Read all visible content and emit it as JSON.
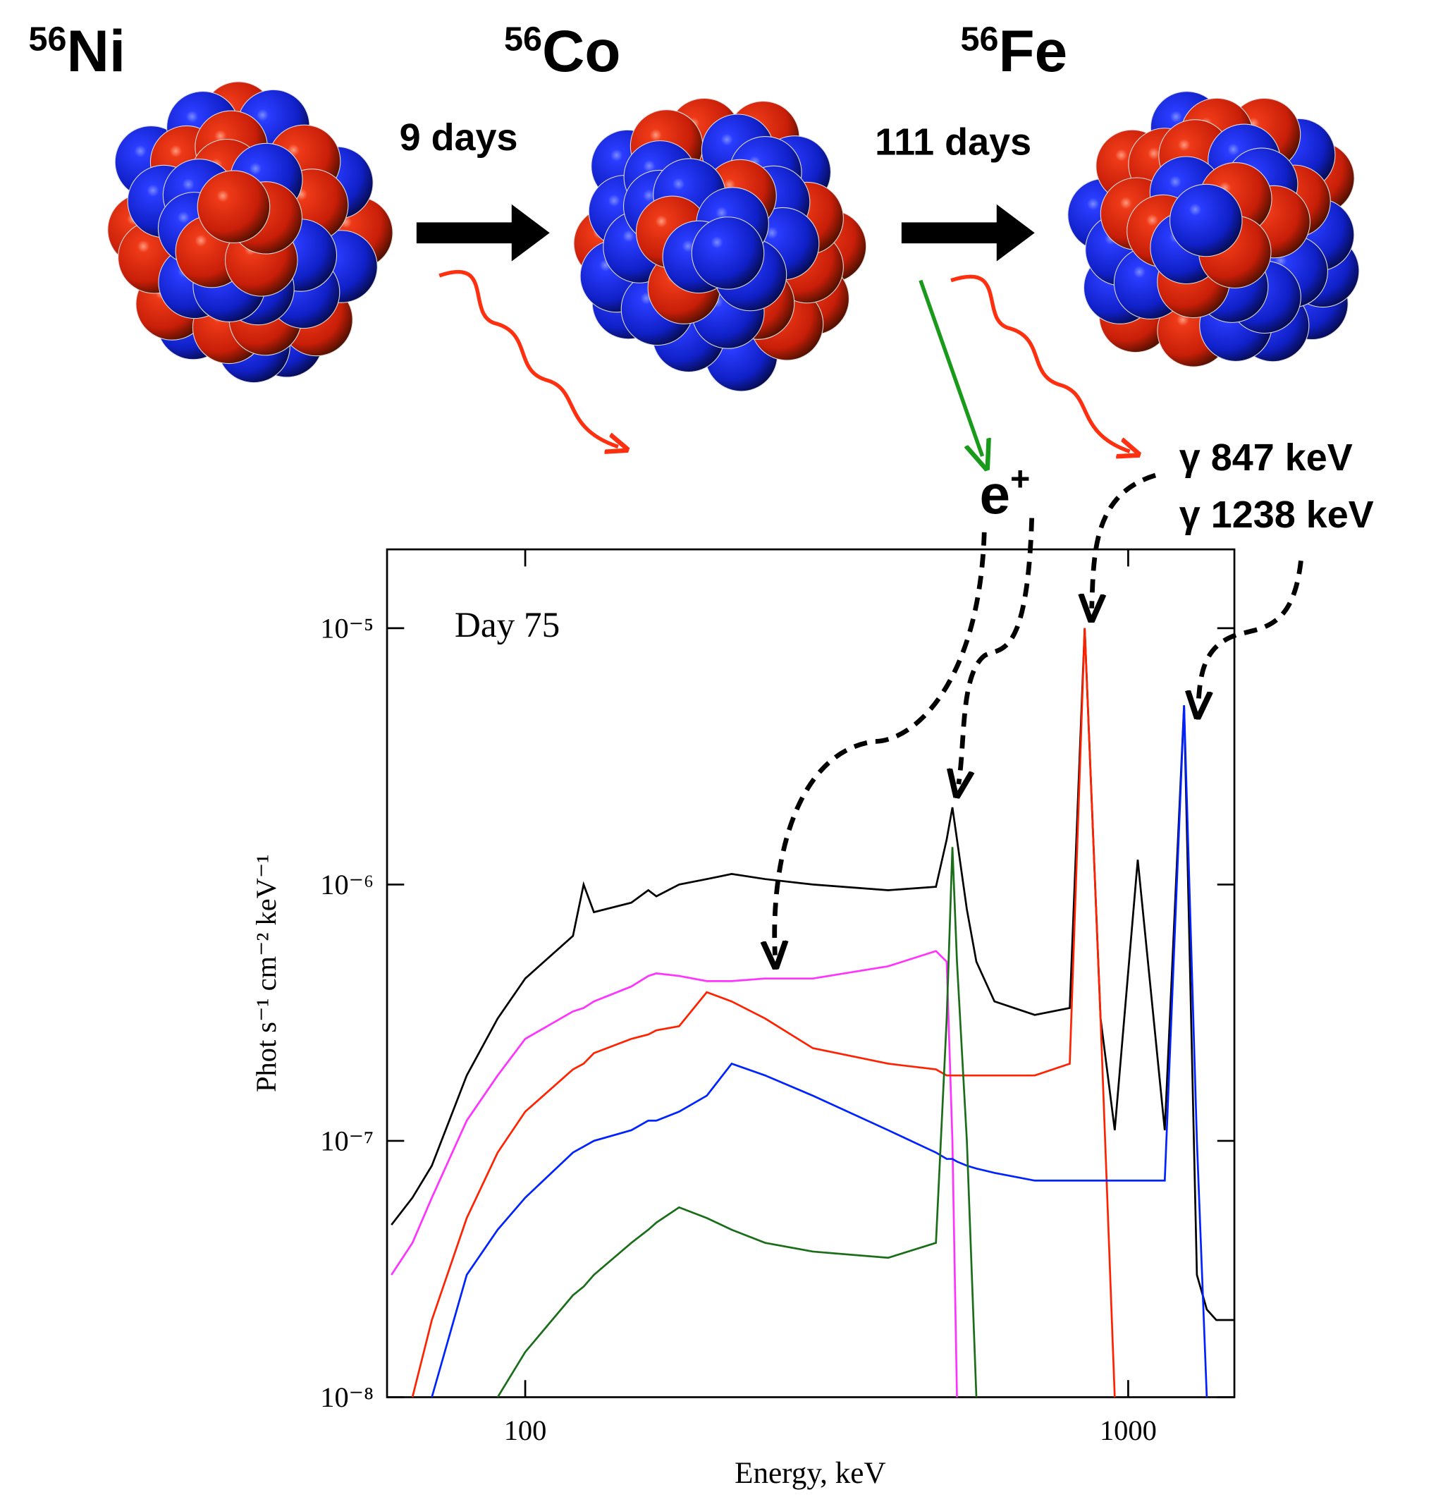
{
  "diagram": {
    "nuclei": [
      {
        "mass": "56",
        "symbol": "Ni"
      },
      {
        "mass": "56",
        "symbol": "Co"
      },
      {
        "mass": "56",
        "symbol": "Fe"
      }
    ],
    "decays": [
      "9 days",
      "111 days"
    ],
    "positron": {
      "symbol": "e",
      "charge": "+"
    },
    "gamma_lines": [
      "γ 847 keV",
      "γ 1238 keV"
    ]
  },
  "chart_data": {
    "type": "line",
    "annotation": "Day 75",
    "x_label": "Energy, keV",
    "y_label": "Phot s⁻¹ cm⁻² keV⁻¹",
    "xscale": "log",
    "yscale": "log",
    "xlim": [
      59,
      1500
    ],
    "ylim": [
      1e-08,
      2.03e-05
    ],
    "xticks": [
      100,
      1000
    ],
    "yticks": [
      {
        "value": 1e-05,
        "label": "10⁻⁵"
      },
      {
        "value": 1e-06,
        "label": "10⁻⁶"
      },
      {
        "value": 1e-07,
        "label": "10⁻⁷"
      },
      {
        "value": 1e-08,
        "label": "10⁻⁸"
      }
    ],
    "x": [
      60,
      65,
      70,
      80,
      90,
      100,
      120,
      125,
      130,
      150,
      160,
      165,
      180,
      200,
      220,
      250,
      300,
      400,
      480,
      500,
      511,
      520,
      540,
      560,
      600,
      700,
      800,
      847,
      900,
      950,
      1037,
      1150,
      1238,
      1300,
      1350,
      1400,
      1500
    ],
    "series": [
      {
        "color": "#000000",
        "values": [
          4.7e-08,
          6e-08,
          8e-08,
          1.8e-07,
          3e-07,
          4.3e-07,
          6.3e-07,
          1e-06,
          7.8e-07,
          8.5e-07,
          9.5e-07,
          9e-07,
          1e-06,
          1.05e-06,
          1.1e-06,
          1.05e-06,
          1e-06,
          9.5e-07,
          9.8e-07,
          1.5e-06,
          2e-06,
          1.5e-06,
          8e-07,
          5e-07,
          3.5e-07,
          3.1e-07,
          3.3e-07,
          1e-05,
          3e-07,
          1.1e-07,
          1.25e-06,
          1.1e-07,
          5e-06,
          3e-08,
          2.2e-08,
          2e-08,
          2e-08
        ]
      },
      {
        "color": "#ff33ff",
        "values": [
          3e-08,
          4e-08,
          6e-08,
          1.2e-07,
          1.8e-07,
          2.5e-07,
          3.2e-07,
          3.3e-07,
          3.5e-07,
          4e-07,
          4.4e-07,
          4.5e-07,
          4.4e-07,
          4.2e-07,
          4.2e-07,
          4.3e-07,
          4.3e-07,
          4.8e-07,
          5.5e-07,
          5e-07,
          1e-07,
          1e-08,
          null,
          null,
          null,
          null,
          null,
          null,
          null,
          null,
          null,
          null,
          null,
          null,
          null,
          null,
          null
        ]
      },
      {
        "color": "#ff2200",
        "values": [
          null,
          1e-08,
          2e-08,
          5e-08,
          9e-08,
          1.3e-07,
          1.9e-07,
          2e-07,
          2.2e-07,
          2.5e-07,
          2.6e-07,
          2.7e-07,
          2.8e-07,
          3.8e-07,
          3.5e-07,
          3e-07,
          2.3e-07,
          2e-07,
          1.9e-07,
          1.8e-07,
          1.8e-07,
          1.8e-07,
          1.8e-07,
          1.8e-07,
          1.8e-07,
          1.8e-07,
          2e-07,
          1e-05,
          3e-07,
          1e-08,
          null,
          null,
          null,
          null,
          null,
          null,
          null
        ]
      },
      {
        "color": "#0022ff",
        "values": [
          null,
          null,
          1e-08,
          3e-08,
          4.5e-08,
          6e-08,
          9e-08,
          9.5e-08,
          1e-07,
          1.1e-07,
          1.2e-07,
          1.2e-07,
          1.3e-07,
          1.5e-07,
          2e-07,
          1.8e-07,
          1.5e-07,
          1.1e-07,
          9e-08,
          8.5e-08,
          8.5e-08,
          8.3e-08,
          8e-08,
          7.8e-08,
          7.5e-08,
          7e-08,
          7e-08,
          7e-08,
          7e-08,
          7e-08,
          7e-08,
          7e-08,
          5e-06,
          1e-07,
          1e-08,
          null,
          null
        ]
      },
      {
        "color": "#1a6e1a",
        "values": [
          null,
          null,
          null,
          null,
          1e-08,
          1.5e-08,
          2.5e-08,
          2.7e-08,
          3e-08,
          4e-08,
          4.5e-08,
          4.8e-08,
          5.5e-08,
          5e-08,
          4.5e-08,
          4e-08,
          3.7e-08,
          3.5e-08,
          4e-08,
          3e-07,
          1.4e-06,
          5e-07,
          1e-07,
          1e-08,
          null,
          null,
          null,
          null,
          null,
          null,
          null,
          null,
          null,
          null,
          null,
          null,
          null
        ]
      }
    ]
  }
}
